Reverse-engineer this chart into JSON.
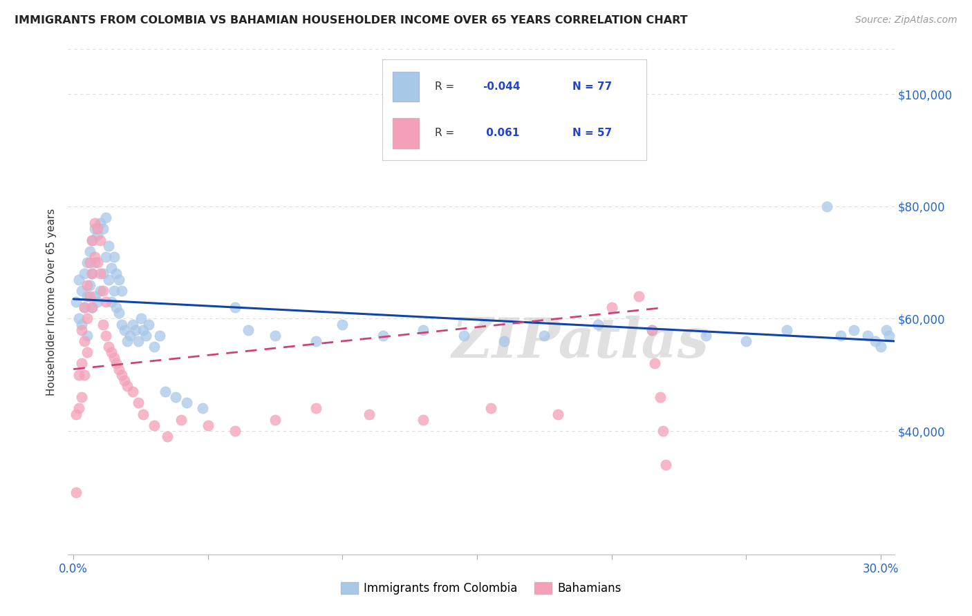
{
  "title": "IMMIGRANTS FROM COLOMBIA VS BAHAMIAN HOUSEHOLDER INCOME OVER 65 YEARS CORRELATION CHART",
  "source": "Source: ZipAtlas.com",
  "ylabel": "Householder Income Over 65 years",
  "ylim": [
    18000,
    108000
  ],
  "xlim": [
    -0.002,
    0.305
  ],
  "color_blue": "#A8C8E8",
  "color_pink": "#F4A0B8",
  "color_blue_line": "#1144AA",
  "color_pink_line": "#CC4477",
  "watermark": "ZIPatlas",
  "background_color": "#FFFFFF",
  "grid_color": "#DDDDDD",
  "blue_x": [
    0.001,
    0.002,
    0.002,
    0.003,
    0.003,
    0.004,
    0.004,
    0.005,
    0.005,
    0.005,
    0.006,
    0.006,
    0.007,
    0.007,
    0.007,
    0.008,
    0.008,
    0.008,
    0.009,
    0.009,
    0.01,
    0.01,
    0.011,
    0.011,
    0.012,
    0.012,
    0.013,
    0.013,
    0.014,
    0.014,
    0.015,
    0.015,
    0.016,
    0.016,
    0.017,
    0.017,
    0.018,
    0.018,
    0.019,
    0.02,
    0.021,
    0.022,
    0.023,
    0.024,
    0.025,
    0.026,
    0.027,
    0.028,
    0.03,
    0.032,
    0.034,
    0.038,
    0.042,
    0.048,
    0.06,
    0.065,
    0.075,
    0.09,
    0.1,
    0.115,
    0.13,
    0.145,
    0.16,
    0.175,
    0.195,
    0.215,
    0.235,
    0.25,
    0.265,
    0.28,
    0.285,
    0.29,
    0.295,
    0.298,
    0.3,
    0.302,
    0.303
  ],
  "blue_y": [
    63000,
    67000,
    60000,
    65000,
    59000,
    68000,
    62000,
    70000,
    64000,
    57000,
    72000,
    66000,
    74000,
    68000,
    62000,
    76000,
    70000,
    64000,
    75000,
    63000,
    77000,
    65000,
    76000,
    68000,
    78000,
    71000,
    73000,
    67000,
    69000,
    63000,
    71000,
    65000,
    68000,
    62000,
    67000,
    61000,
    65000,
    59000,
    58000,
    56000,
    57000,
    59000,
    58000,
    56000,
    60000,
    58000,
    57000,
    59000,
    55000,
    57000,
    47000,
    46000,
    45000,
    44000,
    62000,
    58000,
    57000,
    56000,
    59000,
    57000,
    58000,
    57000,
    56000,
    57000,
    59000,
    58000,
    57000,
    56000,
    58000,
    80000,
    57000,
    58000,
    57000,
    56000,
    55000,
    58000,
    57000
  ],
  "pink_x": [
    0.001,
    0.001,
    0.002,
    0.002,
    0.003,
    0.003,
    0.003,
    0.004,
    0.004,
    0.004,
    0.005,
    0.005,
    0.005,
    0.006,
    0.006,
    0.007,
    0.007,
    0.007,
    0.008,
    0.008,
    0.009,
    0.009,
    0.01,
    0.01,
    0.011,
    0.011,
    0.012,
    0.012,
    0.013,
    0.014,
    0.015,
    0.016,
    0.017,
    0.018,
    0.019,
    0.02,
    0.022,
    0.024,
    0.026,
    0.03,
    0.035,
    0.04,
    0.05,
    0.06,
    0.075,
    0.09,
    0.11,
    0.13,
    0.155,
    0.18,
    0.2,
    0.21,
    0.215,
    0.216,
    0.218,
    0.219,
    0.22
  ],
  "pink_y": [
    29000,
    43000,
    50000,
    44000,
    58000,
    52000,
    46000,
    62000,
    56000,
    50000,
    66000,
    60000,
    54000,
    70000,
    64000,
    74000,
    68000,
    62000,
    77000,
    71000,
    76000,
    70000,
    74000,
    68000,
    65000,
    59000,
    63000,
    57000,
    55000,
    54000,
    53000,
    52000,
    51000,
    50000,
    49000,
    48000,
    47000,
    45000,
    43000,
    41000,
    39000,
    42000,
    41000,
    40000,
    42000,
    44000,
    43000,
    42000,
    44000,
    43000,
    62000,
    64000,
    58000,
    52000,
    46000,
    40000,
    34000
  ],
  "blue_trend": [
    0.0,
    0.305,
    63500,
    56000
  ],
  "pink_trend": [
    0.0,
    0.22,
    51000,
    62000
  ],
  "ytick_vals": [
    40000,
    60000,
    80000,
    100000
  ],
  "ytick_labels": [
    "$40,000",
    "$60,000",
    "$80,000",
    "$100,000"
  ]
}
